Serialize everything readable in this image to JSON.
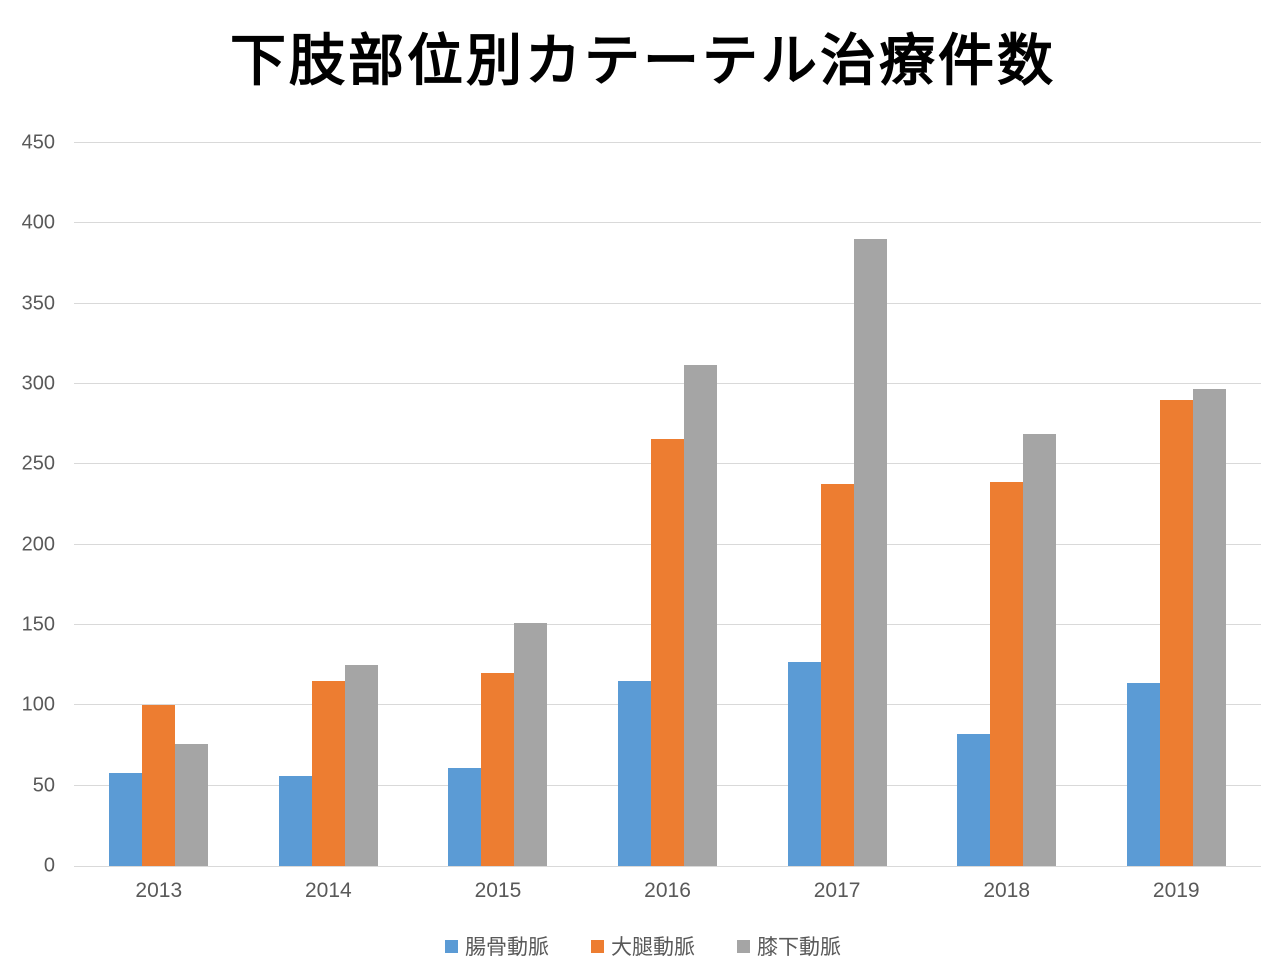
{
  "title": "下肢部位別カテーテル治療件数",
  "chart_data": {
    "type": "bar",
    "title": "下肢部位別カテーテル治療件数",
    "categories": [
      "2013",
      "2014",
      "2015",
      "2016",
      "2017",
      "2018",
      "2019"
    ],
    "series": [
      {
        "key": "iliac-artery",
        "name": "腸骨動脈",
        "color": "#5B9BD5",
        "values": [
          58,
          56,
          61,
          115,
          127,
          82,
          114
        ]
      },
      {
        "key": "femoral-artery",
        "name": "大腿動脈",
        "color": "#ED7D31",
        "values": [
          100,
          115,
          120,
          266,
          238,
          239,
          290
        ]
      },
      {
        "key": "below-knee-artery",
        "name": "膝下動脈",
        "color": "#A5A5A5",
        "values": [
          76,
          125,
          151,
          312,
          390,
          269,
          297
        ]
      }
    ],
    "xlabel": "",
    "ylabel": "",
    "ylim": [
      0,
      450
    ],
    "yticks": [
      0,
      50,
      100,
      150,
      200,
      250,
      300,
      350,
      400,
      450
    ],
    "grid": true,
    "legend_position": "bottom"
  },
  "colors": {
    "background": "#FFFFFF",
    "gridline": "#D9D9D9",
    "axis_text": "#595959",
    "title_text": "#000000"
  }
}
